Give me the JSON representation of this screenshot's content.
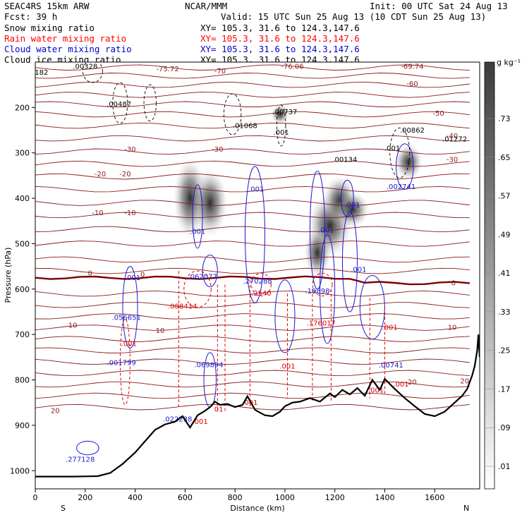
{
  "header": {
    "model": "SEAC4RS 15km ARW",
    "fcst": "Fcst:   39 h",
    "org": "NCAR/MMM",
    "init": "Init: 00 UTC Sat 24 Aug 13",
    "valid": "Valid: 15 UTC Sun 25 Aug 13 (10 CDT Sun 25 Aug 13)",
    "fields": [
      {
        "name": "Snow mixing ratio",
        "xy": "XY= 105.3, 31.6 to 124.3,147.6",
        "color": "#000000"
      },
      {
        "name": "Rain water mixing ratio",
        "xy": "XY= 105.3, 31.6 to 124.3,147.6",
        "color": "#ff0000"
      },
      {
        "name": "Cloud water mixing ratio",
        "xy": "XY= 105.3, 31.6 to 124.3,147.6",
        "color": "#0000cc"
      },
      {
        "name": "Cloud ice mixing ratio",
        "xy": "XY= 105.3, 31.6 to 124.3,147.6",
        "color": "#000000"
      }
    ]
  },
  "chart_data": {
    "type": "contour cross-section",
    "xlabel": "Distance (km)",
    "ylabel": "Pressure (hPa)",
    "xlim": [
      0,
      1780
    ],
    "ylim": [
      1040,
      100
    ],
    "x_ticks": [
      0,
      200,
      400,
      600,
      800,
      1000,
      1200,
      1400,
      1600
    ],
    "y_ticks": [
      200,
      300,
      400,
      500,
      600,
      700,
      800,
      900,
      1000
    ],
    "x_endpoints": {
      "left": "S",
      "right": "N"
    },
    "colorbar": {
      "unit": "g kg⁻¹",
      "labels": [
        ".01",
        ".09",
        ".17",
        ".25",
        ".33",
        ".41",
        ".49",
        ".57",
        ".65",
        ".73"
      ]
    },
    "temperature_isotherms_color": "#8b1a1a",
    "zero_isotherm_color": "#7a0000",
    "temperature_labels": [
      {
        "text": "-75.72",
        "x": 530,
        "p": 120
      },
      {
        "text": "-70",
        "x": 740,
        "p": 125
      },
      {
        "text": "-76.06",
        "x": 1030,
        "p": 115
      },
      {
        "text": "-69.74",
        "x": 1510,
        "p": 115
      },
      {
        "text": "-60",
        "x": 1510,
        "p": 153
      },
      {
        "text": "-50",
        "x": 1615,
        "p": 218
      },
      {
        "text": "-40",
        "x": 1670,
        "p": 268
      },
      {
        "text": "-30",
        "x": 380,
        "p": 297
      },
      {
        "text": "-30",
        "x": 730,
        "p": 297
      },
      {
        "text": "-30",
        "x": 1670,
        "p": 320
      },
      {
        "text": "-20",
        "x": 260,
        "p": 352
      },
      {
        "text": "-20",
        "x": 360,
        "p": 352
      },
      {
        "text": "-10",
        "x": 250,
        "p": 437
      },
      {
        "text": "-10",
        "x": 380,
        "p": 437
      },
      {
        "text": "0",
        "x": 220,
        "p": 570
      },
      {
        "text": "0",
        "x": 430,
        "p": 573
      },
      {
        "text": "0",
        "x": 1675,
        "p": 592
      },
      {
        "text": "10",
        "x": 150,
        "p": 685
      },
      {
        "text": "10",
        "x": 500,
        "p": 697
      },
      {
        "text": "10",
        "x": 1670,
        "p": 690
      },
      {
        "text": "20",
        "x": 80,
        "p": 873
      },
      {
        "text": "20",
        "x": 1510,
        "p": 810
      },
      {
        "text": "20",
        "x": 1720,
        "p": 808
      }
    ],
    "snow_labels": [
      {
        "text": ".00328",
        "x": 200,
        "p": 115
      },
      {
        "text": ".00487",
        "x": 335,
        "p": 198
      },
      {
        "text": ".01068",
        "x": 840,
        "p": 245
      },
      {
        "text": ".00737",
        "x": 1000,
        "p": 215
      },
      {
        "text": ".001",
        "x": 985,
        "p": 260
      },
      {
        "text": ".00134",
        "x": 1240,
        "p": 320
      },
      {
        "text": ".001",
        "x": 1430,
        "p": 295
      },
      {
        "text": ".00862",
        "x": 1510,
        "p": 255
      },
      {
        "text": ".01272",
        "x": 1680,
        "p": 275
      },
      {
        "text": "182",
        "x": 25,
        "p": 128
      }
    ],
    "cloud_water_labels": [
      {
        "text": ".001",
        "x": 390,
        "p": 580
      },
      {
        "text": ".001",
        "x": 650,
        "p": 478
      },
      {
        "text": ".062077",
        "x": 670,
        "p": 578
      },
      {
        "text": ".001",
        "x": 885,
        "p": 385
      },
      {
        "text": ".270288",
        "x": 890,
        "p": 588
      },
      {
        "text": ".001",
        "x": 1165,
        "p": 475
      },
      {
        "text": ".001",
        "x": 1270,
        "p": 420
      },
      {
        "text": ".002741",
        "x": 1465,
        "p": 380
      },
      {
        "text": ".001",
        "x": 1295,
        "p": 562
      },
      {
        "text": ".19898",
        "x": 1130,
        "p": 610
      },
      {
        "text": ".056651",
        "x": 365,
        "p": 668
      },
      {
        "text": ".001799",
        "x": 345,
        "p": 767
      },
      {
        "text": ".069894",
        "x": 695,
        "p": 772
      },
      {
        "text": ".022238",
        "x": 570,
        "p": 892
      },
      {
        "text": ".277128",
        "x": 180,
        "p": 980
      },
      {
        "text": ".00741",
        "x": 1425,
        "p": 773
      }
    ],
    "rain_labels": [
      {
        "text": ".088414",
        "x": 590,
        "p": 643
      },
      {
        "text": ".2540",
        "x": 905,
        "p": 614
      },
      {
        "text": ".176017",
        "x": 1145,
        "p": 680
      },
      {
        "text": ".001",
        "x": 1420,
        "p": 690
      },
      {
        "text": ".001",
        "x": 1010,
        "p": 775
      },
      {
        "text": ".001",
        "x": 860,
        "p": 855
      },
      {
        "text": ".001",
        "x": 1365,
        "p": 828
      },
      {
        "text": ".001",
        "x": 1465,
        "p": 815
      },
      {
        "text": ".001",
        "x": 375,
        "p": 725
      },
      {
        "text": "01",
        "x": 735,
        "p": 870
      },
      {
        "text": ".001",
        "x": 660,
        "p": 897
      }
    ],
    "terrain_surface_pressure": [
      [
        0,
        1013
      ],
      [
        150,
        1013
      ],
      [
        250,
        1012
      ],
      [
        300,
        1005
      ],
      [
        350,
        985
      ],
      [
        400,
        960
      ],
      [
        440,
        935
      ],
      [
        480,
        910
      ],
      [
        520,
        898
      ],
      [
        560,
        892
      ],
      [
        590,
        880
      ],
      [
        620,
        905
      ],
      [
        650,
        878
      ],
      [
        680,
        868
      ],
      [
        700,
        860
      ],
      [
        720,
        848
      ],
      [
        740,
        855
      ],
      [
        770,
        853
      ],
      [
        800,
        860
      ],
      [
        830,
        855
      ],
      [
        850,
        836
      ],
      [
        880,
        866
      ],
      [
        900,
        872
      ],
      [
        920,
        878
      ],
      [
        950,
        880
      ],
      [
        980,
        870
      ],
      [
        1000,
        858
      ],
      [
        1030,
        850
      ],
      [
        1060,
        848
      ],
      [
        1100,
        840
      ],
      [
        1140,
        848
      ],
      [
        1180,
        830
      ],
      [
        1200,
        838
      ],
      [
        1230,
        822
      ],
      [
        1260,
        832
      ],
      [
        1290,
        818
      ],
      [
        1320,
        835
      ],
      [
        1350,
        800
      ],
      [
        1380,
        822
      ],
      [
        1400,
        798
      ],
      [
        1440,
        820
      ],
      [
        1480,
        840
      ],
      [
        1520,
        858
      ],
      [
        1560,
        875
      ],
      [
        1600,
        880
      ],
      [
        1640,
        870
      ],
      [
        1680,
        850
      ],
      [
        1710,
        835
      ],
      [
        1730,
        820
      ],
      [
        1750,
        790
      ],
      [
        1760,
        770
      ],
      [
        1770,
        735
      ],
      [
        1775,
        700
      ],
      [
        1780,
        750
      ]
    ]
  }
}
